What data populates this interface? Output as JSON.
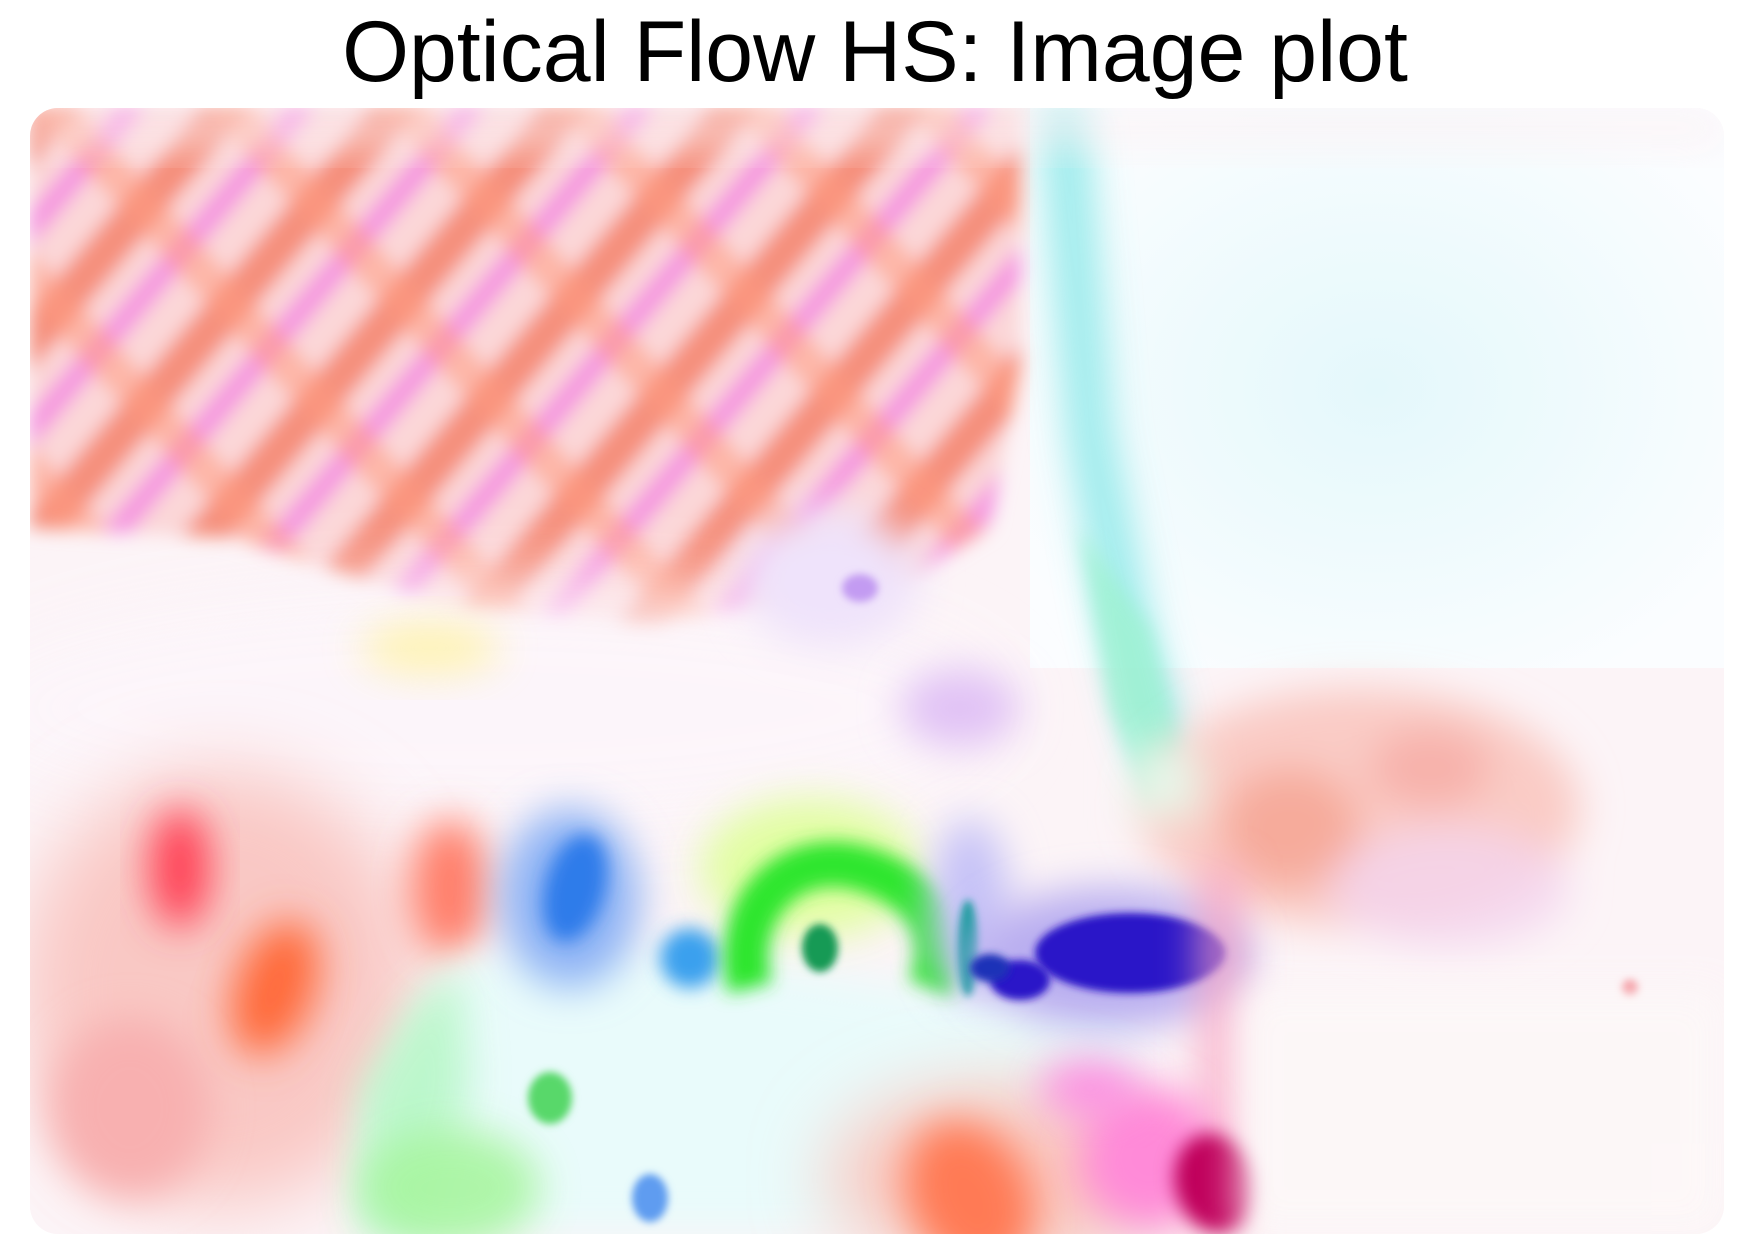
{
  "figure": {
    "title": "Optical Flow HS: Image plot"
  },
  "image": {
    "description_type": "optical-flow-color-map",
    "palette": {
      "background": "#fdf7f9",
      "salmon": "#f58a72",
      "orange_red": "#ff5a3a",
      "magenta": "#f26be6",
      "pink": "#ff9fd8",
      "violet": "#c39bf2",
      "cyan": "#7de8ec",
      "light_cyan": "#dff6fb",
      "green": "#2ee62e",
      "blue": "#2f7bea",
      "deep_blue": "#2a12c8",
      "crimson": "#c0005c",
      "yellow": "#fff27a"
    }
  }
}
